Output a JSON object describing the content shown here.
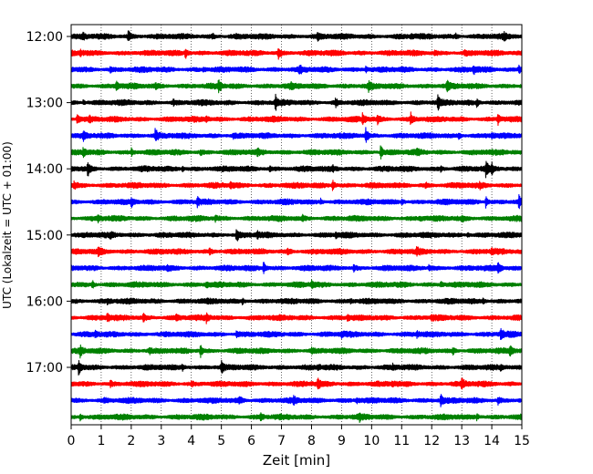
{
  "chart_data": {
    "type": "line",
    "subtype": "seismogram-helicorder",
    "xlabel": "Zeit  [min]",
    "ylabel": "UTC (Lokalzeit = UTC + 01:00)",
    "xlim": [
      0,
      15
    ],
    "x_ticks": [
      0,
      1,
      2,
      3,
      4,
      5,
      6,
      7,
      8,
      9,
      10,
      11,
      12,
      13,
      14,
      15
    ],
    "x_tick_labels": [
      "0",
      "1",
      "2",
      "3",
      "4",
      "5",
      "6",
      "7",
      "8",
      "9",
      "10",
      "11",
      "12",
      "13",
      "14",
      "15"
    ],
    "y_tick_labels": [
      "12:00",
      "13:00",
      "14:00",
      "15:00",
      "16:00",
      "17:00"
    ],
    "y_tick_trace_index": [
      0,
      4,
      8,
      12,
      16,
      20
    ],
    "grid": "vertical dotted",
    "trace_colors": [
      "#000000",
      "#ff0000",
      "#0000ff",
      "#008000"
    ],
    "row_start_times": [
      "12:00",
      "12:15",
      "12:30",
      "12:45",
      "13:00",
      "13:15",
      "13:30",
      "13:45",
      "14:00",
      "14:15",
      "14:30",
      "14:45",
      "15:00",
      "15:15",
      "15:30",
      "15:45",
      "16:00",
      "16:15",
      "16:30",
      "16:45",
      "17:00",
      "17:15",
      "17:30",
      "17:45"
    ],
    "events": [
      [
        [
          1.9,
          0.85
        ],
        [
          0.4,
          0.3
        ],
        [
          4.7,
          0.3
        ],
        [
          5.5,
          0.3
        ],
        [
          8.2,
          0.35
        ],
        [
          11.3,
          0.3
        ],
        [
          12.8,
          0.3
        ],
        [
          14.4,
          0.35
        ]
      ],
      [
        [
          3.8,
          0.7
        ],
        [
          6.9,
          0.9
        ],
        [
          0.3,
          0.3
        ],
        [
          12.1,
          0.35
        ],
        [
          13.1,
          0.3
        ]
      ],
      [
        [
          7.6,
          0.6
        ],
        [
          13.4,
          0.55
        ],
        [
          14.9,
          0.7
        ],
        [
          1.3,
          0.3
        ],
        [
          4.4,
          0.3
        ],
        [
          9.8,
          0.35
        ]
      ],
      [
        [
          1.5,
          0.6
        ],
        [
          4.9,
          0.95
        ],
        [
          9.9,
          0.6
        ],
        [
          12.5,
          0.75
        ],
        [
          2.8,
          0.3
        ],
        [
          7.3,
          0.3
        ]
      ],
      [
        [
          6.8,
          1.0
        ],
        [
          12.2,
          0.95
        ],
        [
          8.8,
          0.5
        ],
        [
          13.5,
          0.45
        ],
        [
          0.4,
          0.3
        ],
        [
          3.4,
          0.3
        ]
      ],
      [
        [
          0.2,
          0.8
        ],
        [
          9.7,
          0.85
        ],
        [
          11.3,
          0.8
        ],
        [
          14.2,
          0.8
        ],
        [
          0.6,
          0.4
        ],
        [
          4.5,
          0.3
        ],
        [
          10.2,
          0.5
        ]
      ],
      [
        [
          2.8,
          1.0
        ],
        [
          9.8,
          0.95
        ],
        [
          0.4,
          0.5
        ],
        [
          5.4,
          0.35
        ],
        [
          12.9,
          0.4
        ],
        [
          14.0,
          0.35
        ]
      ],
      [
        [
          0.4,
          0.55
        ],
        [
          2.0,
          0.45
        ],
        [
          10.3,
          1.0
        ],
        [
          4.3,
          0.3
        ],
        [
          6.2,
          0.4
        ],
        [
          11.5,
          0.35
        ]
      ],
      [
        [
          0.55,
          0.9
        ],
        [
          13.8,
          1.0
        ],
        [
          14.0,
          0.6
        ],
        [
          3.7,
          0.35
        ],
        [
          6.6,
          0.3
        ],
        [
          8.7,
          0.35
        ],
        [
          12.3,
          0.4
        ]
      ],
      [
        [
          0.1,
          0.5
        ],
        [
          5.3,
          0.45
        ],
        [
          8.7,
          0.8
        ],
        [
          11.8,
          0.35
        ],
        [
          13.6,
          0.3
        ]
      ],
      [
        [
          2.0,
          0.5
        ],
        [
          4.2,
          0.5
        ],
        [
          13.8,
          0.7
        ],
        [
          14.9,
          0.85
        ],
        [
          8.3,
          0.35
        ],
        [
          11.0,
          0.35
        ]
      ],
      [
        [
          0.9,
          0.35
        ],
        [
          4.8,
          0.3
        ],
        [
          7.7,
          0.35
        ],
        [
          11.6,
          0.3
        ],
        [
          13.0,
          0.3
        ]
      ],
      [
        [
          5.5,
          1.0
        ],
        [
          6.2,
          0.45
        ],
        [
          8.8,
          0.35
        ],
        [
          1.3,
          0.3
        ],
        [
          13.2,
          0.3
        ]
      ],
      [
        [
          0.9,
          0.6
        ],
        [
          4.6,
          0.35
        ],
        [
          7.2,
          0.4
        ],
        [
          11.5,
          0.45
        ],
        [
          14.0,
          0.4
        ]
      ],
      [
        [
          6.4,
          0.85
        ],
        [
          14.2,
          0.85
        ],
        [
          3.2,
          0.35
        ],
        [
          9.4,
          0.35
        ],
        [
          11.9,
          0.3
        ]
      ],
      [
        [
          0.7,
          0.55
        ],
        [
          4.5,
          0.4
        ],
        [
          8.0,
          0.4
        ],
        [
          12.3,
          0.35
        ]
      ],
      [
        [
          1.2,
          0.3
        ],
        [
          5.7,
          0.3
        ],
        [
          9.3,
          0.3
        ],
        [
          13.7,
          0.3
        ]
      ],
      [
        [
          1.2,
          0.6
        ],
        [
          2.4,
          0.5
        ],
        [
          4.5,
          0.7
        ],
        [
          3.5,
          0.4
        ],
        [
          9.2,
          0.4
        ],
        [
          12.0,
          0.35
        ]
      ],
      [
        [
          14.3,
          1.0
        ],
        [
          0.8,
          0.35
        ],
        [
          5.5,
          0.4
        ],
        [
          9.0,
          0.35
        ],
        [
          11.5,
          0.35
        ]
      ],
      [
        [
          0.3,
          0.6
        ],
        [
          4.3,
          0.9
        ],
        [
          14.6,
          0.75
        ],
        [
          2.6,
          0.35
        ],
        [
          8.0,
          0.35
        ],
        [
          12.7,
          0.4
        ]
      ],
      [
        [
          0.25,
          1.0
        ],
        [
          5.0,
          0.8
        ],
        [
          3.7,
          0.35
        ],
        [
          8.2,
          0.35
        ],
        [
          10.7,
          0.35
        ],
        [
          14.3,
          0.35
        ]
      ],
      [
        [
          8.2,
          0.8
        ],
        [
          13.0,
          0.9
        ],
        [
          1.3,
          0.35
        ],
        [
          4.0,
          0.3
        ],
        [
          10.7,
          0.3
        ]
      ],
      [
        [
          5.6,
          0.5
        ],
        [
          7.4,
          0.45
        ],
        [
          12.3,
          0.8
        ],
        [
          14.2,
          0.55
        ],
        [
          1.1,
          0.3
        ],
        [
          9.5,
          0.3
        ]
      ],
      [
        [
          0.3,
          0.4
        ],
        [
          6.3,
          0.4
        ],
        [
          9.6,
          0.35
        ],
        [
          13.5,
          0.35
        ]
      ]
    ]
  }
}
